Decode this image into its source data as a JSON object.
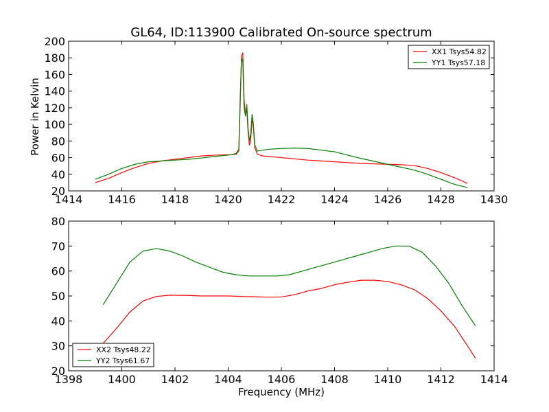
{
  "figure": {
    "title": "GL64, ID:113900 Calibrated On-source spectrum",
    "xlabel": "Frequency (MHz)",
    "ylabel": "Power in Kelvin"
  },
  "chart_data": [
    {
      "type": "line",
      "title": "GL64, ID:113900 Calibrated On-source spectrum",
      "xlabel": "",
      "ylabel": "Power in Kelvin",
      "xlim": [
        1414,
        1430
      ],
      "ylim": [
        20,
        200
      ],
      "xticks": [
        1414,
        1416,
        1418,
        1420,
        1422,
        1424,
        1426,
        1428,
        1430
      ],
      "yticks": [
        20,
        40,
        60,
        80,
        100,
        120,
        140,
        160,
        180,
        200
      ],
      "grid": false,
      "legend_position": "top-right",
      "series": [
        {
          "name": "XX1 Tsys54.82",
          "color": "#ff0000",
          "points": [
            [
              1415.0,
              30
            ],
            [
              1415.5,
              35
            ],
            [
              1416.0,
              42
            ],
            [
              1416.5,
              48
            ],
            [
              1417.0,
              53
            ],
            [
              1417.5,
              56
            ],
            [
              1418.0,
              58
            ],
            [
              1418.5,
              60
            ],
            [
              1419.0,
              62
            ],
            [
              1419.5,
              63
            ],
            [
              1420.0,
              63.5
            ],
            [
              1420.3,
              64
            ],
            [
              1420.4,
              68
            ],
            [
              1420.45,
              120
            ],
            [
              1420.5,
              182
            ],
            [
              1420.55,
              186
            ],
            [
              1420.6,
              130
            ],
            [
              1420.65,
              112
            ],
            [
              1420.7,
              118
            ],
            [
              1420.75,
              90
            ],
            [
              1420.8,
              75
            ],
            [
              1420.85,
              82
            ],
            [
              1420.9,
              108
            ],
            [
              1420.95,
              95
            ],
            [
              1421.0,
              72
            ],
            [
              1421.1,
              64
            ],
            [
              1421.3,
              62
            ],
            [
              1421.5,
              61.5
            ],
            [
              1422.0,
              60
            ],
            [
              1422.5,
              58.5
            ],
            [
              1423.0,
              57
            ],
            [
              1423.5,
              56
            ],
            [
              1424.0,
              55
            ],
            [
              1424.5,
              54
            ],
            [
              1425.0,
              53
            ],
            [
              1425.5,
              52.5
            ],
            [
              1426.0,
              52
            ],
            [
              1426.5,
              51.5
            ],
            [
              1427.0,
              50.5
            ],
            [
              1427.5,
              47
            ],
            [
              1428.0,
              42
            ],
            [
              1428.5,
              36
            ],
            [
              1429.0,
              29
            ]
          ]
        },
        {
          "name": "YY1 Tsys57.18",
          "color": "#008000",
          "points": [
            [
              1415.0,
              34
            ],
            [
              1415.5,
              40
            ],
            [
              1416.0,
              47
            ],
            [
              1416.5,
              52
            ],
            [
              1417.0,
              55
            ],
            [
              1417.5,
              56
            ],
            [
              1418.0,
              57
            ],
            [
              1418.5,
              58
            ],
            [
              1419.0,
              59.5
            ],
            [
              1419.5,
              61.5
            ],
            [
              1420.0,
              63
            ],
            [
              1420.3,
              65
            ],
            [
              1420.4,
              70
            ],
            [
              1420.45,
              130
            ],
            [
              1420.5,
              180
            ],
            [
              1420.55,
              175
            ],
            [
              1420.6,
              120
            ],
            [
              1420.65,
              110
            ],
            [
              1420.7,
              124
            ],
            [
              1420.75,
              95
            ],
            [
              1420.8,
              80
            ],
            [
              1420.85,
              90
            ],
            [
              1420.9,
              112
            ],
            [
              1420.95,
              100
            ],
            [
              1421.0,
              75
            ],
            [
              1421.1,
              68
            ],
            [
              1421.3,
              69
            ],
            [
              1421.5,
              70
            ],
            [
              1422.0,
              71
            ],
            [
              1422.5,
              71.5
            ],
            [
              1423.0,
              71
            ],
            [
              1423.5,
              69
            ],
            [
              1424.0,
              67
            ],
            [
              1424.5,
              63
            ],
            [
              1425.0,
              59
            ],
            [
              1425.5,
              55.5
            ],
            [
              1426.0,
              52
            ],
            [
              1426.5,
              48.5
            ],
            [
              1427.0,
              45
            ],
            [
              1427.5,
              40
            ],
            [
              1428.0,
              34
            ],
            [
              1428.5,
              28
            ],
            [
              1429.0,
              24
            ]
          ]
        }
      ]
    },
    {
      "type": "line",
      "title": "",
      "xlabel": "Frequency (MHz)",
      "ylabel": "",
      "xlim": [
        1398,
        1414
      ],
      "ylim": [
        20,
        80
      ],
      "xticks": [
        1398,
        1400,
        1402,
        1404,
        1406,
        1408,
        1410,
        1412,
        1414
      ],
      "yticks": [
        20,
        30,
        40,
        50,
        60,
        70,
        80
      ],
      "grid": false,
      "legend_position": "bottom-left",
      "series": [
        {
          "name": "XX2 Tsys48.22",
          "color": "#ff0000",
          "points": [
            [
              1399.3,
              31
            ],
            [
              1399.8,
              37
            ],
            [
              1400.3,
              43.5
            ],
            [
              1400.8,
              48
            ],
            [
              1401.3,
              49.8
            ],
            [
              1401.8,
              50.3
            ],
            [
              1402.5,
              50.2
            ],
            [
              1403.0,
              50
            ],
            [
              1403.5,
              50
            ],
            [
              1404.0,
              50
            ],
            [
              1404.5,
              49.8
            ],
            [
              1405.0,
              49.7
            ],
            [
              1405.5,
              49.5
            ],
            [
              1406.0,
              49.6
            ],
            [
              1406.5,
              50.5
            ],
            [
              1407.0,
              52
            ],
            [
              1407.5,
              53
            ],
            [
              1408.0,
              54.5
            ],
            [
              1408.5,
              55.5
            ],
            [
              1409.0,
              56.3
            ],
            [
              1409.5,
              56.3
            ],
            [
              1410.0,
              55.8
            ],
            [
              1410.5,
              54.5
            ],
            [
              1411.0,
              52.5
            ],
            [
              1411.5,
              49
            ],
            [
              1412.0,
              44
            ],
            [
              1412.5,
              38
            ],
            [
              1413.0,
              30
            ],
            [
              1413.3,
              25
            ]
          ]
        },
        {
          "name": "YY2 Tsys61.67",
          "color": "#008000",
          "points": [
            [
              1399.3,
              46.5
            ],
            [
              1399.8,
              55
            ],
            [
              1400.3,
              63.5
            ],
            [
              1400.8,
              68
            ],
            [
              1401.3,
              69
            ],
            [
              1401.8,
              68
            ],
            [
              1402.3,
              66
            ],
            [
              1402.8,
              63.5
            ],
            [
              1403.3,
              61.5
            ],
            [
              1403.8,
              59.5
            ],
            [
              1404.3,
              58.5
            ],
            [
              1404.8,
              58
            ],
            [
              1405.3,
              58
            ],
            [
              1405.8,
              58
            ],
            [
              1406.3,
              58.5
            ],
            [
              1406.8,
              60
            ],
            [
              1407.3,
              61.5
            ],
            [
              1407.8,
              63
            ],
            [
              1408.3,
              64.5
            ],
            [
              1408.8,
              66
            ],
            [
              1409.3,
              67.5
            ],
            [
              1409.8,
              69
            ],
            [
              1410.3,
              70
            ],
            [
              1410.8,
              70
            ],
            [
              1411.3,
              67.5
            ],
            [
              1411.8,
              62
            ],
            [
              1412.3,
              55
            ],
            [
              1412.8,
              46
            ],
            [
              1413.3,
              38
            ]
          ]
        }
      ]
    }
  ]
}
